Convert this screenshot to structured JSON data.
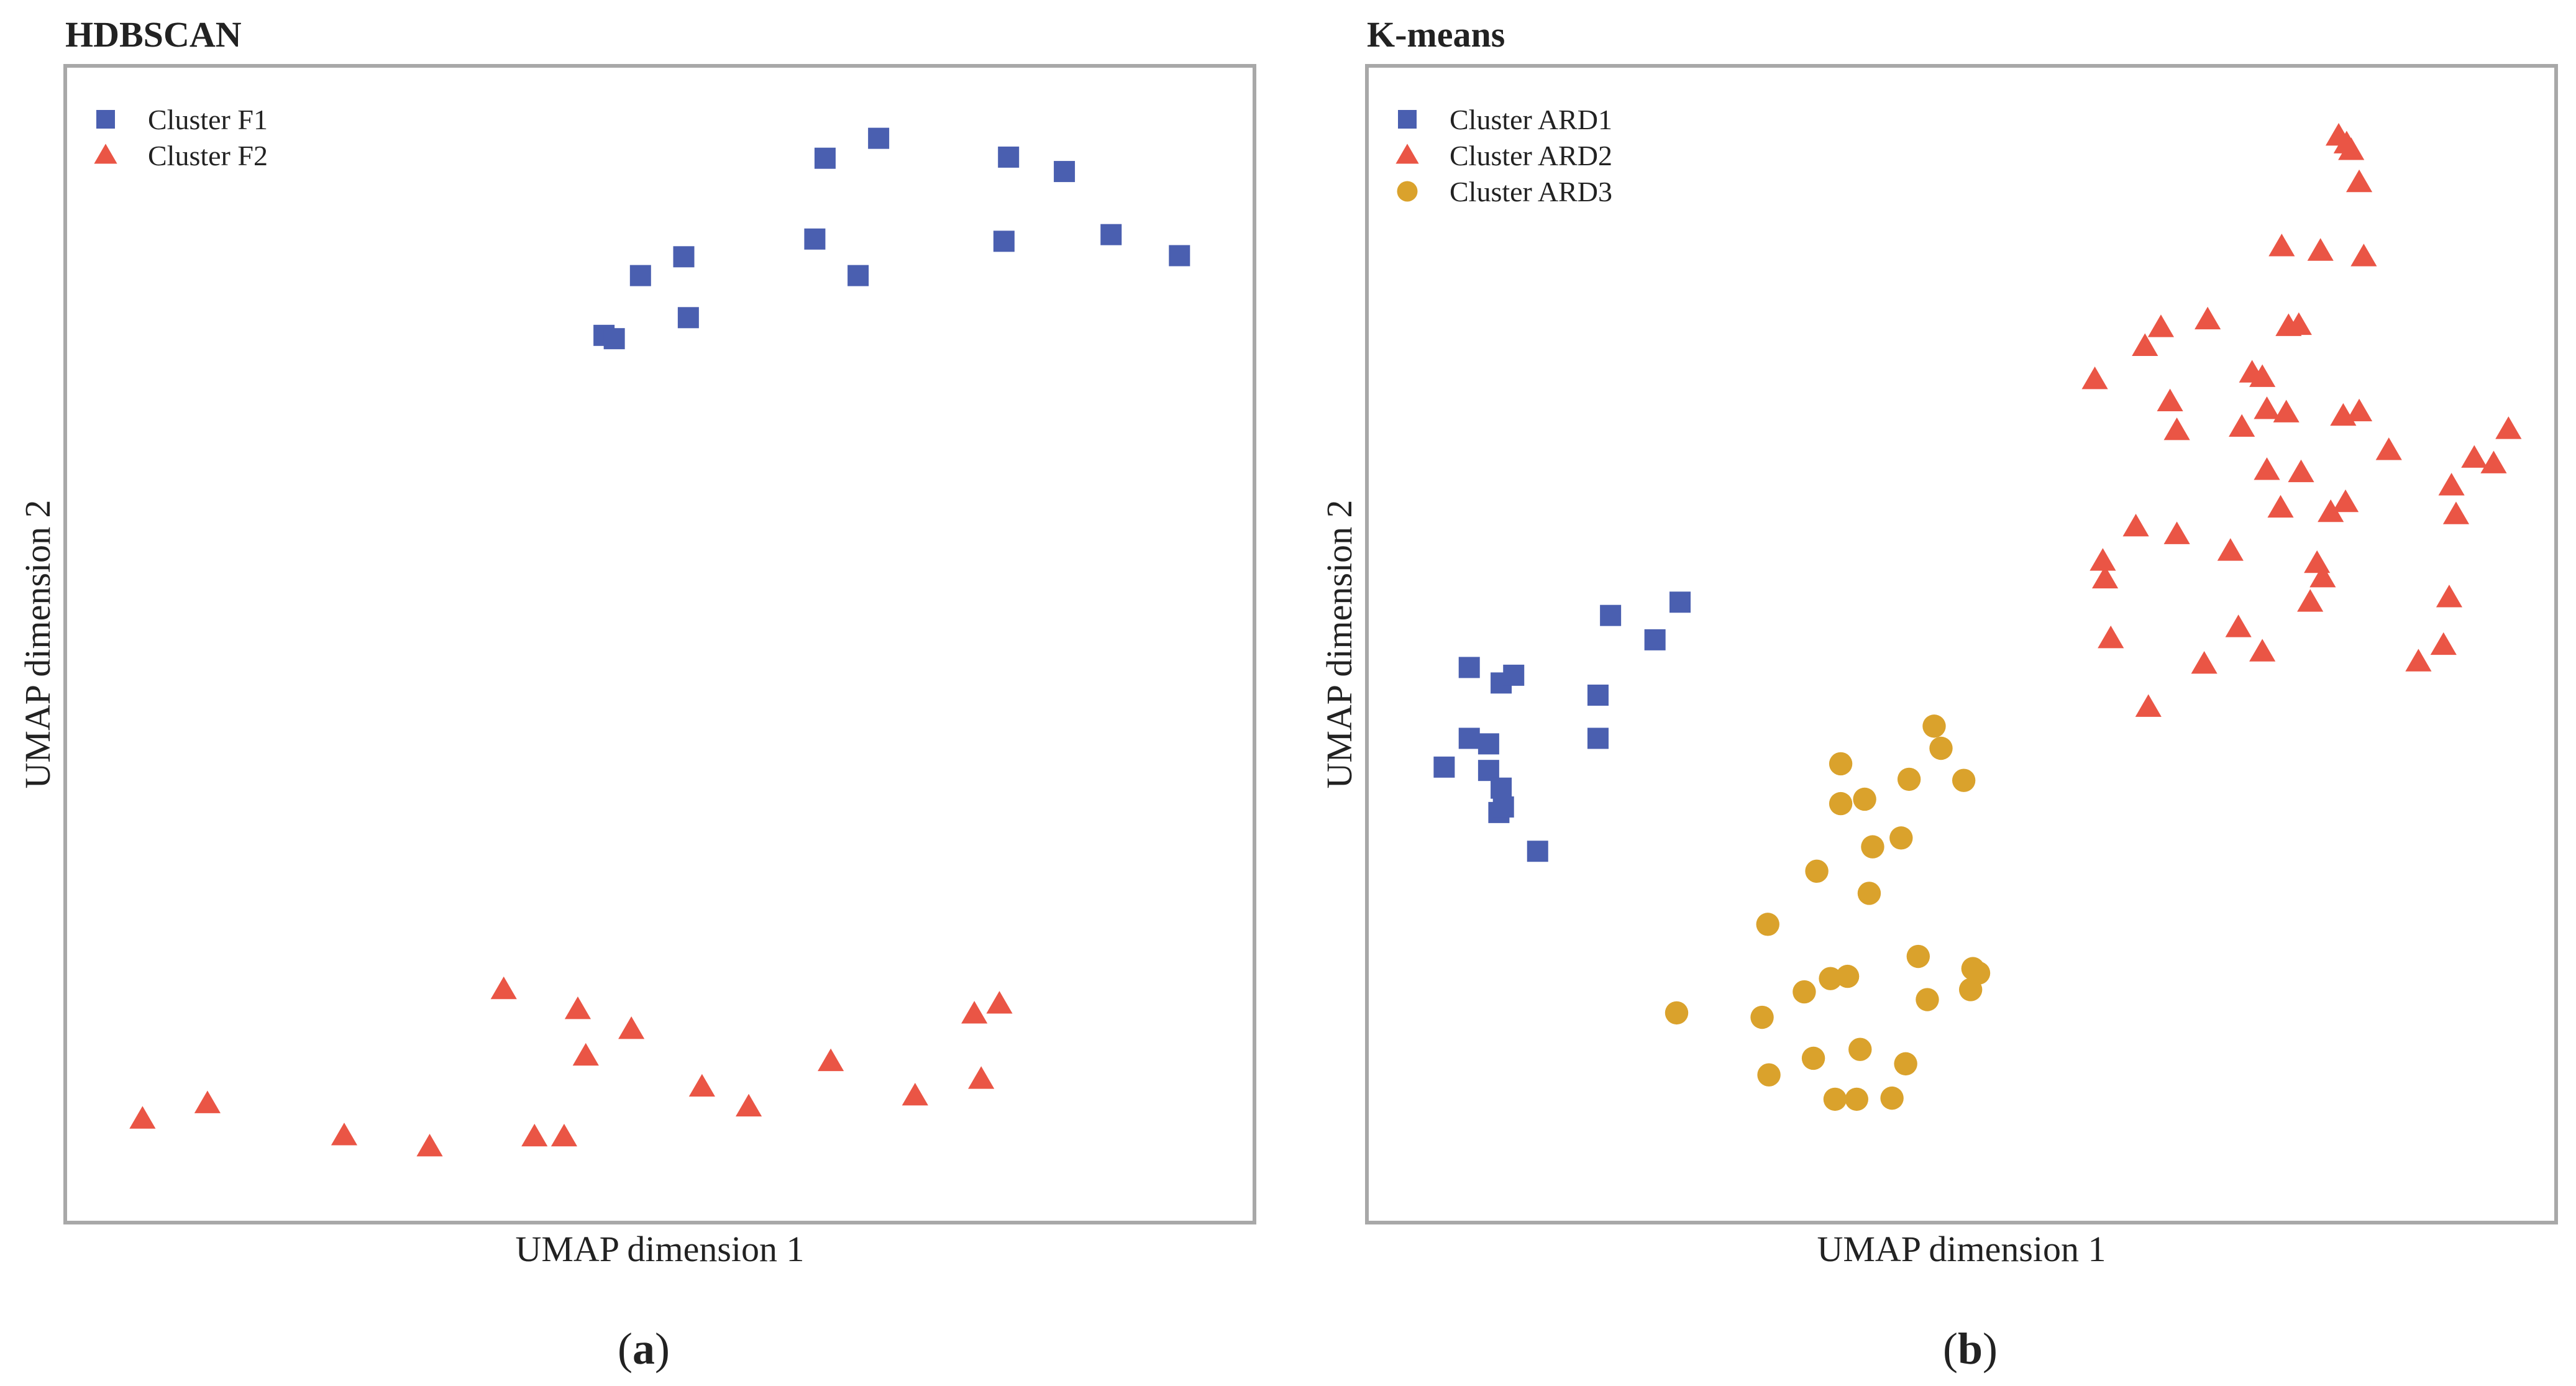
{
  "chart_data": [
    {
      "type": "scatter",
      "panel_label": "a",
      "title": "HDBSCAN",
      "xlabel": "UMAP dimension 1",
      "ylabel": "UMAP dimension 2",
      "xlim": [
        0,
        100
      ],
      "ylim": [
        0,
        100
      ],
      "grid": false,
      "legend_position": "top-left",
      "series": [
        {
          "name": "Cluster F1",
          "marker": "square",
          "color": "#4a5fb0",
          "points": [
            [
              45.1,
              77.9
            ],
            [
              46.0,
              77.6
            ],
            [
              48.3,
              83.3
            ],
            [
              52.1,
              85.0
            ],
            [
              52.5,
              79.5
            ],
            [
              63.6,
              86.6
            ],
            [
              67.4,
              83.3
            ],
            [
              64.5,
              93.9
            ],
            [
              69.2,
              95.7
            ],
            [
              80.2,
              86.4
            ],
            [
              80.6,
              94.0
            ],
            [
              85.5,
              92.7
            ],
            [
              89.6,
              87.0
            ],
            [
              95.6,
              85.1
            ]
          ]
        },
        {
          "name": "Cluster F2",
          "marker": "triangle",
          "color": "#ea5545",
          "points": [
            [
              4.6,
              7.1
            ],
            [
              10.3,
              8.5
            ],
            [
              22.3,
              5.6
            ],
            [
              29.8,
              4.6
            ],
            [
              36.3,
              18.8
            ],
            [
              39.0,
              5.5
            ],
            [
              41.6,
              5.5
            ],
            [
              42.8,
              17.0
            ],
            [
              43.5,
              12.8
            ],
            [
              47.5,
              15.2
            ],
            [
              53.7,
              10.0
            ],
            [
              57.8,
              8.2
            ],
            [
              65.0,
              12.3
            ],
            [
              72.4,
              9.2
            ],
            [
              77.6,
              16.6
            ],
            [
              79.8,
              17.5
            ],
            [
              78.2,
              10.7
            ]
          ]
        }
      ],
      "legend": [
        "Cluster F1",
        "Cluster F2"
      ]
    },
    {
      "type": "scatter",
      "panel_label": "b",
      "title": "K-means",
      "xlabel": "UMAP dimension 1",
      "ylabel": "UMAP dimension 2",
      "xlim": [
        0,
        100
      ],
      "ylim": [
        0,
        100
      ],
      "grid": false,
      "legend_position": "top-left",
      "series": [
        {
          "name": "Cluster ARD1",
          "marker": "square",
          "color": "#4a5fb0",
          "points": [
            [
              4.6,
              38.9
            ],
            [
              6.8,
              41.5
            ],
            [
              6.8,
              47.9
            ],
            [
              8.5,
              38.6
            ],
            [
              8.5,
              41.0
            ],
            [
              9.4,
              34.8
            ],
            [
              9.6,
              37.0
            ],
            [
              9.8,
              35.3
            ],
            [
              9.6,
              46.5
            ],
            [
              10.7,
              47.2
            ],
            [
              12.8,
              31.3
            ],
            [
              18.1,
              45.4
            ],
            [
              18.1,
              41.5
            ],
            [
              19.2,
              52.6
            ],
            [
              23.1,
              50.4
            ],
            [
              25.3,
              53.8
            ]
          ]
        },
        {
          "name": "Cluster ARD2",
          "marker": "triangle",
          "color": "#ea5545",
          "points": [
            [
              61.7,
              73.9
            ],
            [
              62.4,
              57.5
            ],
            [
              62.6,
              55.9
            ],
            [
              63.1,
              50.5
            ],
            [
              65.3,
              60.6
            ],
            [
              66.1,
              76.9
            ],
            [
              66.4,
              44.3
            ],
            [
              67.5,
              78.6
            ],
            [
              68.3,
              71.9
            ],
            [
              68.9,
              69.3
            ],
            [
              68.9,
              59.9
            ],
            [
              71.6,
              79.3
            ],
            [
              71.3,
              48.2
            ],
            [
              73.6,
              58.4
            ],
            [
              74.3,
              51.5
            ],
            [
              74.6,
              69.6
            ],
            [
              75.5,
              74.5
            ],
            [
              76.4,
              74.1
            ],
            [
              76.4,
              49.3
            ],
            [
              76.8,
              71.2
            ],
            [
              76.8,
              65.7
            ],
            [
              78.1,
              85.9
            ],
            [
              78.0,
              62.3
            ],
            [
              78.5,
              70.9
            ],
            [
              78.7,
              78.7
            ],
            [
              79.6,
              78.8
            ],
            [
              79.8,
              65.5
            ],
            [
              80.6,
              53.8
            ],
            [
              81.2,
              57.3
            ],
            [
              81.5,
              85.5
            ],
            [
              81.7,
              56.0
            ],
            [
              82.4,
              61.9
            ],
            [
              83.1,
              95.9
            ],
            [
              83.8,
              95.2
            ],
            [
              83.5,
              70.6
            ],
            [
              84.2,
              94.6
            ],
            [
              83.7,
              62.8
            ],
            [
              84.9,
              91.7
            ],
            [
              84.9,
              71.0
            ],
            [
              85.3,
              85.0
            ],
            [
              87.5,
              67.5
            ],
            [
              90.1,
              48.4
            ],
            [
              92.3,
              49.9
            ],
            [
              92.8,
              54.2
            ],
            [
              93.4,
              61.7
            ],
            [
              93.0,
              64.3
            ],
            [
              95.0,
              66.8
            ],
            [
              96.7,
              66.3
            ],
            [
              98.0,
              69.4
            ]
          ]
        },
        {
          "name": "Cluster ARD3",
          "marker": "circle",
          "color": "#daa22c",
          "points": [
            [
              25.0,
              16.7
            ],
            [
              32.5,
              16.3
            ],
            [
              33.0,
              24.7
            ],
            [
              33.1,
              11.1
            ],
            [
              36.2,
              18.6
            ],
            [
              37.0,
              12.6
            ],
            [
              37.3,
              29.5
            ],
            [
              38.5,
              19.8
            ],
            [
              38.9,
              8.9
            ],
            [
              39.4,
              39.2
            ],
            [
              39.4,
              35.6
            ],
            [
              40.0,
              20.0
            ],
            [
              40.8,
              8.9
            ],
            [
              41.1,
              13.4
            ],
            [
              41.5,
              36.0
            ],
            [
              41.9,
              27.5
            ],
            [
              42.2,
              31.7
            ],
            [
              43.9,
              9.0
            ],
            [
              44.7,
              32.5
            ],
            [
              45.1,
              12.1
            ],
            [
              45.4,
              37.8
            ],
            [
              46.2,
              21.8
            ],
            [
              47.0,
              17.9
            ],
            [
              47.6,
              42.6
            ],
            [
              48.2,
              40.6
            ],
            [
              50.2,
              37.7
            ],
            [
              50.8,
              18.8
            ],
            [
              51.0,
              20.7
            ],
            [
              51.5,
              20.3
            ]
          ]
        }
      ],
      "legend": [
        "Cluster ARD1",
        "Cluster ARD2",
        "Cluster ARD3"
      ]
    }
  ]
}
